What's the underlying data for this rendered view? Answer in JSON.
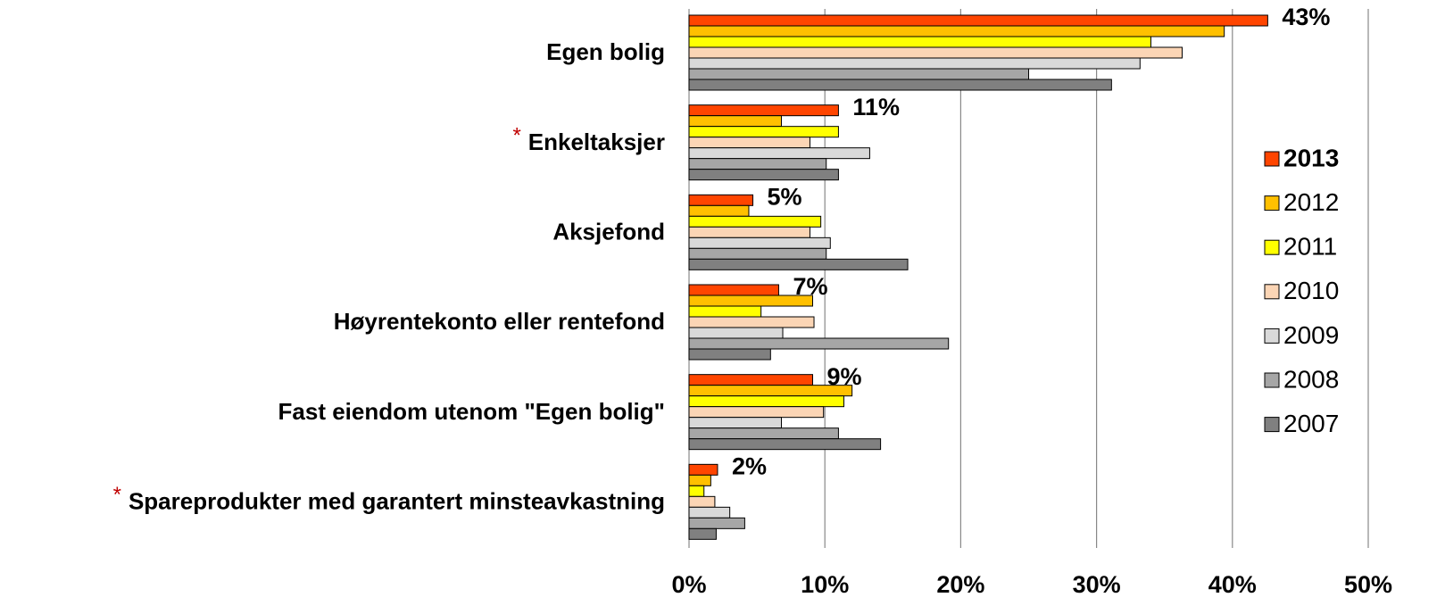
{
  "chart_data": {
    "type": "hbar",
    "categories": [
      "Egen bolig",
      "Enkeltaksjer",
      "Aksjefond",
      "Høyrentekonto eller rentefond",
      "Fast eiendom utenom \"Egen bolig\"",
      "Spareprodukter med garantert minsteavkastning"
    ],
    "category_marks": [
      null,
      "*",
      null,
      null,
      null,
      "*"
    ],
    "series": [
      {
        "name": "2013",
        "color": "#ff4500",
        "values": [
          42.6,
          11.0,
          4.7,
          6.6,
          9.1,
          2.1
        ],
        "value_labels": [
          "43%",
          "11%",
          "5%",
          "7%",
          "9%",
          "2%"
        ]
      },
      {
        "name": "2012",
        "color": "#ffc000",
        "values": [
          39.4,
          6.8,
          4.4,
          9.1,
          12.0,
          1.6
        ]
      },
      {
        "name": "2011",
        "color": "#ffff00",
        "values": [
          34.0,
          11.0,
          9.7,
          5.3,
          11.4,
          1.1
        ]
      },
      {
        "name": "2010",
        "color": "#fbd5b5",
        "values": [
          36.3,
          8.9,
          8.9,
          9.2,
          9.9,
          1.9
        ]
      },
      {
        "name": "2009",
        "color": "#d9d9d9",
        "values": [
          33.2,
          13.3,
          10.4,
          6.9,
          6.8,
          3.0
        ]
      },
      {
        "name": "2008",
        "color": "#a6a6a6",
        "values": [
          25.0,
          10.1,
          10.1,
          19.1,
          11.0,
          4.1
        ]
      },
      {
        "name": "2007",
        "color": "#808080",
        "values": [
          31.1,
          11.0,
          16.1,
          6.0,
          14.1,
          2.0
        ]
      }
    ],
    "xlim": [
      0,
      50
    ],
    "xticks": [
      {
        "value": 0,
        "label": "0%"
      },
      {
        "value": 10,
        "label": "10%"
      },
      {
        "value": 20,
        "label": "20%"
      },
      {
        "value": 30,
        "label": "30%"
      },
      {
        "value": 40,
        "label": "40%"
      },
      {
        "value": 50,
        "label": "50%"
      }
    ],
    "grid": true
  }
}
